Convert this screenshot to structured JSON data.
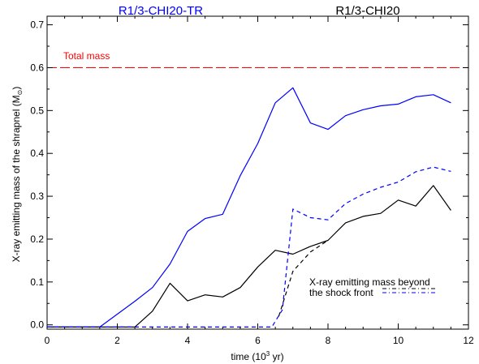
{
  "chart_data": {
    "type": "line",
    "titles": [
      {
        "text": "R1/3-CHI20-TR",
        "color": "#0000ff"
      },
      {
        "text": "R1/3-CHI20",
        "color": "#000000"
      }
    ],
    "xlabel": "time (10",
    "xlabel_sup": "3",
    "xlabel_end": " yr)",
    "ylabel": "X-ray emitting mass of the shrapnel (M",
    "ylabel_sub": "⊙",
    "ylabel_end": ")",
    "xlim": [
      0,
      12
    ],
    "ylim": [
      -0.01,
      0.72
    ],
    "x_ticks": [
      0,
      2,
      4,
      6,
      8,
      10,
      12
    ],
    "y_ticks": [
      0.0,
      0.1,
      0.2,
      0.3,
      0.4,
      0.5,
      0.6,
      0.7
    ],
    "y_tick_labels": [
      "0.0",
      "0.1",
      "0.2",
      "0.3",
      "0.4",
      "0.5",
      "0.6",
      "0.7"
    ],
    "reference_line": {
      "label": "Total mass",
      "y": 0.6,
      "color": "#ff0000",
      "style": "long-dash"
    },
    "legend_note": [
      "X-ray emitting mass beyond",
      "the shock front"
    ],
    "series": [
      {
        "name": "R1/3-CHI20-TR",
        "color": "#0000ff",
        "style": "solid",
        "x": [
          0,
          1.5,
          2.0,
          2.5,
          3.0,
          3.5,
          4.0,
          4.5,
          5.0,
          5.5,
          6.0,
          6.5,
          7.0,
          7.5,
          8.0,
          8.5,
          9.0,
          9.5,
          10.0,
          10.5,
          11.0,
          11.5
        ],
        "y": [
          -0.005,
          -0.005,
          0.025,
          0.055,
          0.087,
          0.142,
          0.218,
          0.248,
          0.258,
          0.348,
          0.423,
          0.518,
          0.553,
          0.471,
          0.456,
          0.488,
          0.502,
          0.511,
          0.515,
          0.532,
          0.537,
          0.518
        ]
      },
      {
        "name": "R1/3-CHI20",
        "color": "#000000",
        "style": "solid",
        "x": [
          0,
          2.5,
          3.0,
          3.5,
          4.0,
          4.5,
          5.0,
          5.5,
          6.0,
          6.5,
          7.0,
          7.5,
          8.0,
          8.5,
          9.0,
          9.5,
          10.0,
          10.5,
          11.0,
          11.5
        ],
        "y": [
          -0.005,
          -0.005,
          0.032,
          0.097,
          0.056,
          0.07,
          0.065,
          0.087,
          0.135,
          0.174,
          0.165,
          0.183,
          0.197,
          0.238,
          0.253,
          0.26,
          0.291,
          0.277,
          0.325,
          0.267
        ]
      },
      {
        "name": "R1/3-CHI20-TR beyond shock front",
        "color": "#0000ff",
        "style": "dashed",
        "x": [
          0,
          6.4,
          6.7,
          7.0,
          7.5,
          8.0,
          8.5,
          9.0,
          9.5,
          10.0,
          10.5,
          11.0,
          11.5
        ],
        "y": [
          -0.005,
          -0.005,
          0.035,
          0.27,
          0.25,
          0.245,
          0.283,
          0.305,
          0.321,
          0.333,
          0.357,
          0.368,
          0.358
        ]
      },
      {
        "name": "R1/3-CHI20 beyond shock front",
        "color": "#000000",
        "style": "dashed",
        "x": [
          6.6,
          7.0,
          7.5,
          8.0
        ],
        "y": [
          0.02,
          0.125,
          0.17,
          0.197
        ]
      }
    ]
  }
}
